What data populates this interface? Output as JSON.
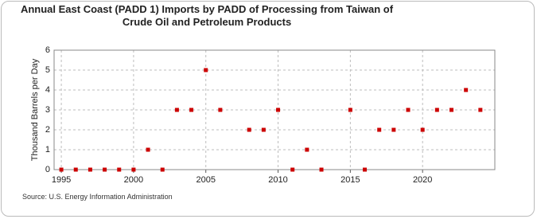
{
  "chart_data": {
    "type": "scatter",
    "title": "Annual East Coast (PADD 1) Imports by PADD of Processing from Taiwan of Crude Oil and Petroleum Products",
    "y_label": "Thousand Barrels per Day",
    "source": "Source: U.S. Energy Information Administration",
    "x": [
      1995,
      1996,
      1997,
      1998,
      1999,
      2000,
      2001,
      2002,
      2003,
      2004,
      2005,
      2006,
      2008,
      2009,
      2010,
      2011,
      2012,
      2013,
      2015,
      2016,
      2017,
      2018,
      2019,
      2020,
      2021,
      2022,
      2023,
      2024
    ],
    "values": [
      0,
      0,
      0,
      0,
      0,
      0,
      1,
      0,
      3,
      3,
      5,
      3,
      2,
      2,
      3,
      0,
      1,
      0,
      3,
      0,
      2,
      2,
      3,
      2,
      3,
      3,
      4,
      3
    ],
    "color": "#cc0000",
    "xlim": [
      1994.5,
      2025
    ],
    "xticks": [
      1995,
      2000,
      2005,
      2010,
      2015,
      2020
    ],
    "ylim": [
      0,
      6
    ],
    "yticks": [
      0,
      1,
      2,
      3,
      4,
      5,
      6
    ],
    "grid": true
  }
}
